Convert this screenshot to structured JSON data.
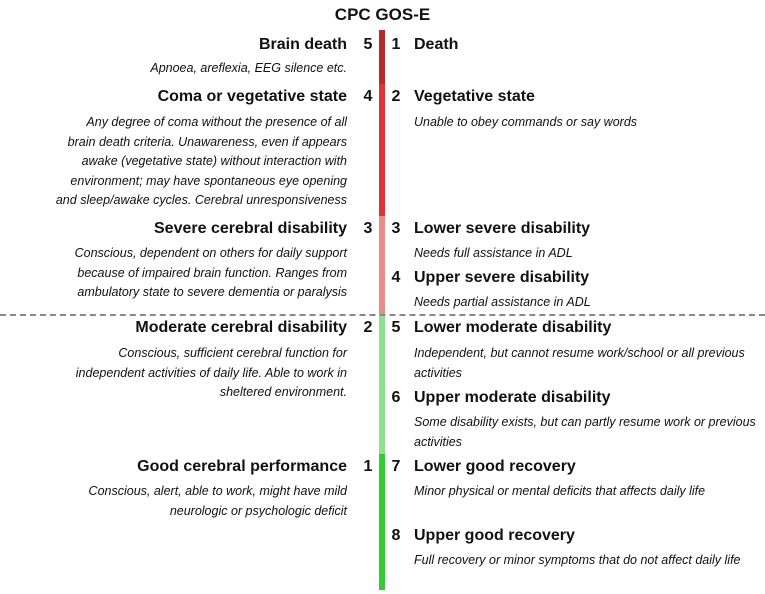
{
  "title": "CPC GOS-E",
  "colors": {
    "dark_red": "#b52a2a",
    "red": "#e0323a",
    "pink": "#e88b8b",
    "light_green": "#8ee08e",
    "green": "#33cc33"
  },
  "cpc": [
    {
      "number": "5",
      "label": "Brain death",
      "desc": "Apnoea, areflexia, EEG silence etc."
    },
    {
      "number": "4",
      "label": "Coma or vegetative state",
      "desc": "Any degree of coma without the presence of all\nbrain death criteria. Unawareness, even if appears\nawake (vegetative state) without interaction with\nenvironment; may have spontaneous eye opening\nand sleep/awake cycles. Cerebral unresponsiveness"
    },
    {
      "number": "3",
      "label": "Severe cerebral disability",
      "desc": "Conscious, dependent on others for daily support\nbecause of impaired brain function. Ranges from\nambulatory state to severe dementia or paralysis"
    },
    {
      "number": "2",
      "label": "Moderate cerebral disability",
      "desc": "Conscious, sufficient cerebral function for\nindependent activities of daily life. Able to work in\nsheltered environment."
    },
    {
      "number": "1",
      "label": "Good cerebral performance",
      "desc": "Conscious, alert, able to work, might have mild\nneurologic or psychologic deficit"
    }
  ],
  "gose": [
    {
      "number": "1",
      "label": "Death",
      "desc": ""
    },
    {
      "number": "2",
      "label": "Vegetative state",
      "desc": "Unable to obey commands or say words"
    },
    {
      "number": "3",
      "label": "Lower severe disability",
      "desc": "Needs full assistance in ADL"
    },
    {
      "number": "4",
      "label": "Upper severe disability",
      "desc": "Needs partial assistance in ADL"
    },
    {
      "number": "5",
      "label": "Lower moderate disability",
      "desc": "Independent, but cannot resume work/school or all previous activities"
    },
    {
      "number": "6",
      "label": "Upper moderate disability",
      "desc": "Some disability exists, but can partly resume work or previous activities"
    },
    {
      "number": "7",
      "label": "Lower good recovery",
      "desc": "Minor physical or mental deficits that affects daily life"
    },
    {
      "number": "8",
      "label": "Upper good recovery",
      "desc": "Full recovery or minor symptoms that do not affect daily life"
    }
  ]
}
